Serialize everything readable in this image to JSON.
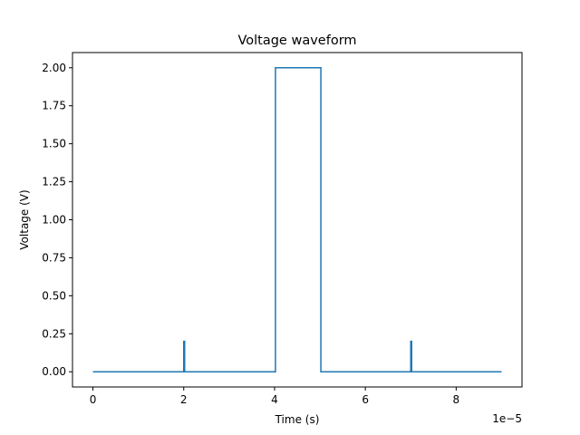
{
  "chart_data": {
    "type": "line",
    "title": "Voltage waveform",
    "xlabel": "Time (s)",
    "ylabel": "Voltage (V)",
    "x_offset_label": "1e−5",
    "xlim": [
      -0.45,
      9.45
    ],
    "ylim": [
      -0.1,
      2.1
    ],
    "x_ticks": [
      0,
      2,
      4,
      6,
      8
    ],
    "x_tick_labels": [
      "0",
      "2",
      "4",
      "6",
      "8"
    ],
    "y_ticks": [
      0,
      0.25,
      0.5,
      0.75,
      1.0,
      1.25,
      1.5,
      1.75,
      2.0
    ],
    "y_tick_labels": [
      "0.00",
      "0.25",
      "0.50",
      "0.75",
      "1.00",
      "1.25",
      "1.50",
      "1.75",
      "2.00"
    ],
    "grid": false,
    "line_color": "#1f77b4",
    "series": [
      {
        "x": [
          0,
          2,
          2,
          2.02,
          2.02,
          4,
          4.02,
          4.02,
          5,
          5.02,
          5.02,
          7,
          7,
          7.02,
          7.02,
          9
        ],
        "y": [
          0,
          0,
          0.2,
          0.2,
          0,
          0,
          0,
          2.0,
          2.0,
          2.0,
          0,
          0,
          0.2,
          0.2,
          0,
          0
        ]
      }
    ]
  }
}
